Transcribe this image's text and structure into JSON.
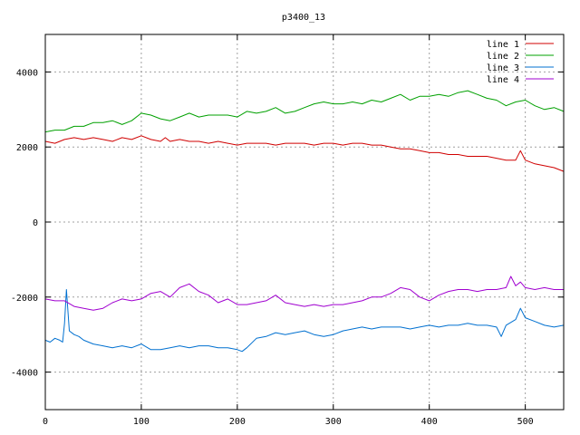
{
  "chart_data": {
    "type": "line",
    "title": "p3400_13",
    "xlabel": "",
    "ylabel": "",
    "xlim": [
      0,
      540
    ],
    "ylim": [
      -5000,
      5000
    ],
    "xticks": [
      0,
      100,
      200,
      300,
      400,
      500
    ],
    "yticks": [
      -4000,
      -2000,
      0,
      2000,
      4000
    ],
    "grid": true,
    "legend_position": "top-right",
    "series": [
      {
        "name": "line 1",
        "color": "#d00000",
        "x": [
          0,
          10,
          20,
          30,
          40,
          50,
          60,
          70,
          80,
          90,
          100,
          110,
          120,
          125,
          130,
          140,
          150,
          160,
          170,
          180,
          190,
          200,
          210,
          220,
          230,
          240,
          250,
          260,
          270,
          280,
          290,
          300,
          310,
          320,
          330,
          340,
          350,
          360,
          370,
          380,
          390,
          400,
          410,
          420,
          430,
          440,
          450,
          460,
          470,
          480,
          490,
          495,
          500,
          510,
          520,
          530,
          540
        ],
        "y": [
          2150,
          2100,
          2200,
          2250,
          2200,
          2250,
          2200,
          2150,
          2250,
          2200,
          2300,
          2200,
          2150,
          2250,
          2150,
          2200,
          2150,
          2150,
          2100,
          2150,
          2100,
          2050,
          2100,
          2100,
          2100,
          2050,
          2100,
          2100,
          2100,
          2050,
          2100,
          2100,
          2050,
          2100,
          2100,
          2050,
          2050,
          2000,
          1950,
          1950,
          1900,
          1850,
          1850,
          1800,
          1800,
          1750,
          1750,
          1750,
          1700,
          1650,
          1650,
          1900,
          1650,
          1550,
          1500,
          1450,
          1350
        ]
      },
      {
        "name": "line 2",
        "color": "#00a000",
        "x": [
          0,
          10,
          20,
          30,
          40,
          50,
          60,
          70,
          80,
          90,
          100,
          110,
          120,
          130,
          140,
          150,
          160,
          170,
          180,
          190,
          200,
          210,
          220,
          230,
          240,
          250,
          260,
          270,
          280,
          290,
          300,
          310,
          320,
          330,
          340,
          350,
          360,
          370,
          380,
          390,
          400,
          410,
          420,
          430,
          440,
          450,
          460,
          470,
          480,
          490,
          500,
          510,
          520,
          530,
          540
        ],
        "y": [
          2400,
          2450,
          2450,
          2550,
          2550,
          2650,
          2650,
          2700,
          2600,
          2700,
          2900,
          2850,
          2750,
          2700,
          2800,
          2900,
          2800,
          2850,
          2850,
          2850,
          2800,
          2950,
          2900,
          2950,
          3050,
          2900,
          2950,
          3050,
          3150,
          3200,
          3150,
          3150,
          3200,
          3150,
          3250,
          3200,
          3300,
          3400,
          3250,
          3350,
          3350,
          3400,
          3350,
          3450,
          3500,
          3400,
          3300,
          3250,
          3100,
          3200,
          3250,
          3100,
          3000,
          3050,
          2950
        ]
      },
      {
        "name": "line 3",
        "color": "#0070d0",
        "x": [
          0,
          5,
          10,
          15,
          18,
          20,
          22,
          25,
          30,
          35,
          40,
          50,
          60,
          70,
          80,
          90,
          100,
          110,
          120,
          130,
          140,
          150,
          160,
          170,
          180,
          190,
          200,
          205,
          210,
          220,
          230,
          240,
          250,
          260,
          270,
          280,
          290,
          300,
          310,
          320,
          330,
          340,
          350,
          360,
          370,
          380,
          390,
          400,
          410,
          420,
          430,
          440,
          450,
          460,
          470,
          475,
          480,
          490,
          495,
          500,
          510,
          520,
          530,
          540
        ],
        "y": [
          -3150,
          -3200,
          -3100,
          -3150,
          -3200,
          -2700,
          -1800,
          -2900,
          -3000,
          -3050,
          -3150,
          -3250,
          -3300,
          -3350,
          -3300,
          -3350,
          -3250,
          -3400,
          -3400,
          -3350,
          -3300,
          -3350,
          -3300,
          -3300,
          -3350,
          -3350,
          -3400,
          -3450,
          -3350,
          -3100,
          -3050,
          -2950,
          -3000,
          -2950,
          -2900,
          -3000,
          -3050,
          -3000,
          -2900,
          -2850,
          -2800,
          -2850,
          -2800,
          -2800,
          -2800,
          -2850,
          -2800,
          -2750,
          -2800,
          -2750,
          -2750,
          -2700,
          -2750,
          -2750,
          -2800,
          -3050,
          -2750,
          -2600,
          -2300,
          -2550,
          -2650,
          -2750,
          -2800,
          -2750
        ]
      },
      {
        "name": "line 4",
        "color": "#a000d0",
        "x": [
          0,
          10,
          20,
          30,
          40,
          50,
          60,
          70,
          80,
          90,
          100,
          110,
          120,
          130,
          140,
          150,
          160,
          170,
          180,
          190,
          200,
          210,
          220,
          230,
          240,
          250,
          260,
          270,
          280,
          290,
          300,
          310,
          320,
          330,
          340,
          350,
          360,
          370,
          380,
          390,
          400,
          410,
          420,
          430,
          440,
          450,
          460,
          470,
          480,
          485,
          490,
          495,
          500,
          510,
          520,
          530,
          540
        ],
        "y": [
          -2050,
          -2100,
          -2100,
          -2250,
          -2300,
          -2350,
          -2300,
          -2150,
          -2050,
          -2100,
          -2050,
          -1900,
          -1850,
          -2000,
          -1750,
          -1650,
          -1850,
          -1950,
          -2150,
          -2050,
          -2200,
          -2200,
          -2150,
          -2100,
          -1950,
          -2150,
          -2200,
          -2250,
          -2200,
          -2250,
          -2200,
          -2200,
          -2150,
          -2100,
          -2000,
          -2000,
          -1900,
          -1750,
          -1800,
          -2000,
          -2100,
          -1950,
          -1850,
          -1800,
          -1800,
          -1850,
          -1800,
          -1800,
          -1750,
          -1450,
          -1700,
          -1600,
          -1750,
          -1800,
          -1750,
          -1800,
          -1800
        ]
      }
    ]
  }
}
